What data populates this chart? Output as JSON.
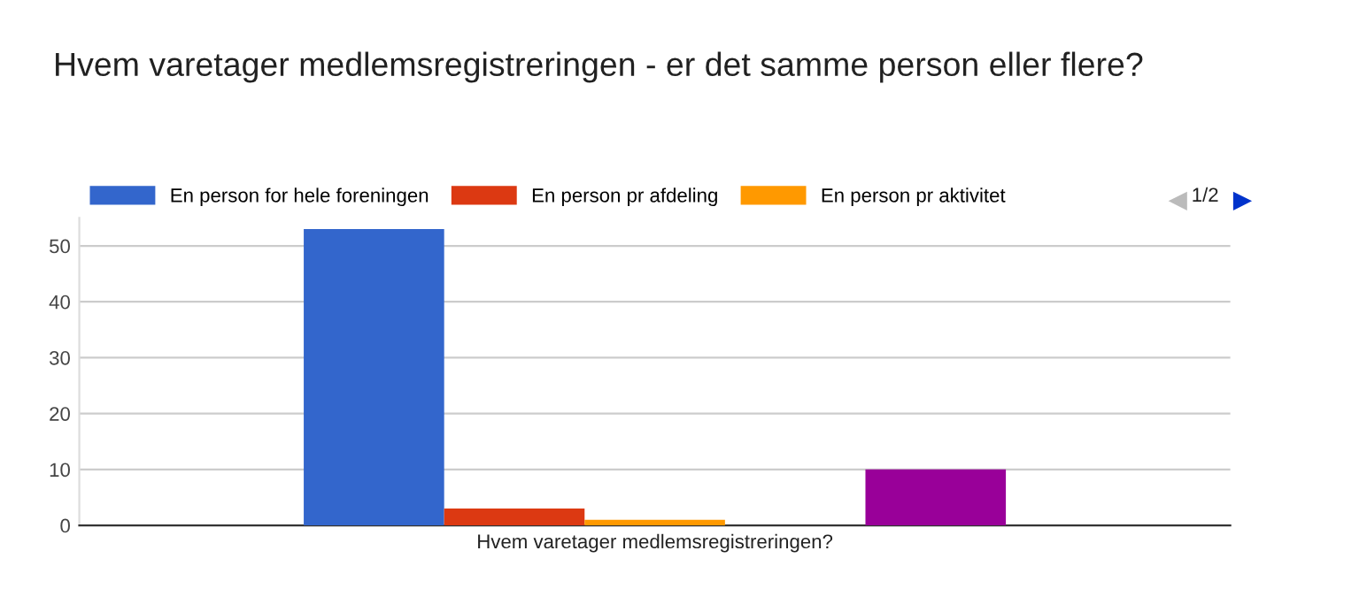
{
  "chart_data": {
    "type": "bar",
    "title": "Hvem varetager medlemsregistreringen - er det samme person eller flere?",
    "categories": [
      "Hvem varetager medlemsregistreringen?"
    ],
    "series": [
      {
        "name": "En person for hele foreningen",
        "color": "#3366cc",
        "values": [
          53
        ]
      },
      {
        "name": "En person pr afdeling",
        "color": "#dc3912",
        "values": [
          3
        ]
      },
      {
        "name": "En person pr aktivitet",
        "color": "#ff9900",
        "values": [
          1
        ]
      },
      {
        "color": "#109618",
        "values": [
          0
        ]
      },
      {
        "color": "#990099",
        "values": [
          10
        ]
      }
    ],
    "ylim": [
      0,
      55
    ],
    "yticks": [
      0,
      10,
      20,
      30,
      40,
      50
    ],
    "grid": "y",
    "legend": "top left",
    "annotations": [
      "1/2"
    ]
  }
}
